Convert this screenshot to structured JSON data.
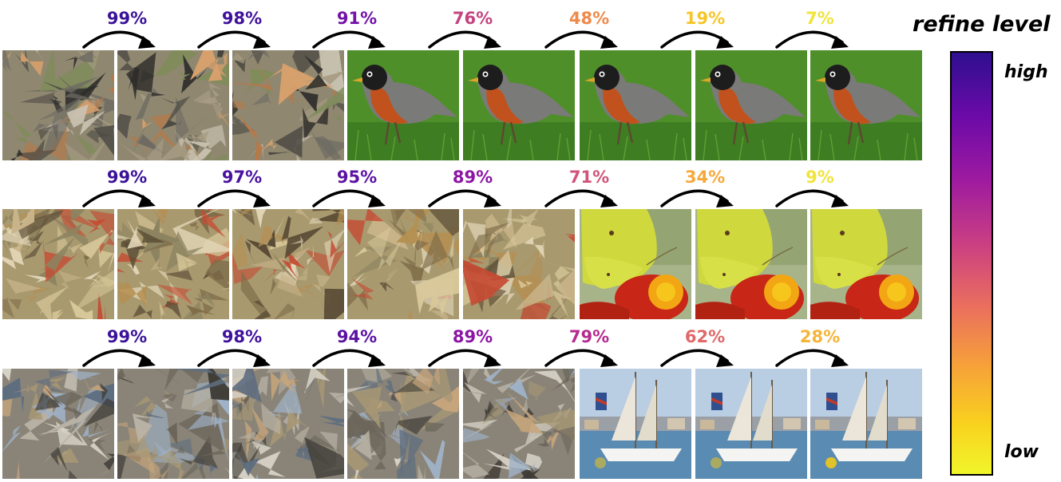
{
  "legend": {
    "title": "refine level",
    "high_label": "high",
    "low_label": "low"
  },
  "rows": [
    {
      "subject": "robin",
      "percentages": [
        "99%",
        "98%",
        "91%",
        "76%",
        "48%",
        "19%",
        "7%"
      ],
      "percentage_colors": [
        "#3b1299",
        "#40129c",
        "#7413a8",
        "#c3447f",
        "#ef8a4a",
        "#f6c626",
        "#f1e43a"
      ],
      "tiles": [
        "noise",
        "patches",
        "patches",
        "bird",
        "bird",
        "bird",
        "bird",
        "bird"
      ]
    },
    {
      "subject": "butterfly",
      "percentages": [
        "99%",
        "97%",
        "95%",
        "89%",
        "71%",
        "34%",
        "9%"
      ],
      "percentage_colors": [
        "#3b1299",
        "#4a129f",
        "#5b12a3",
        "#8c15a4",
        "#d0537a",
        "#f6a93b",
        "#f1e43a"
      ],
      "tiles": [
        "noise",
        "patches",
        "patches",
        "patches",
        "patches",
        "butterfly",
        "butterfly",
        "butterfly"
      ]
    },
    {
      "subject": "boat",
      "percentages": [
        "99%",
        "98%",
        "94%",
        "89%",
        "79%",
        "62%",
        "28%"
      ],
      "percentage_colors": [
        "#3b1299",
        "#40129c",
        "#5b12a3",
        "#8c15a4",
        "#b52a8f",
        "#e06868",
        "#f6b438"
      ],
      "tiles": [
        "noise",
        "patches",
        "patches",
        "patches",
        "patches",
        "boat",
        "boat",
        "boat"
      ]
    }
  ]
}
